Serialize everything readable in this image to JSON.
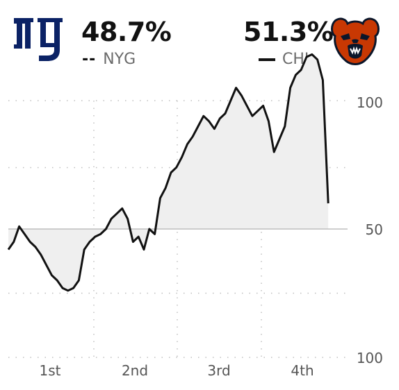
{
  "header": {
    "away": {
      "abbr": "NYG",
      "pct": "48.7%",
      "legend_symbol": "--",
      "logo_icon": "giants-ny-logo-icon",
      "color": "#0b2265"
    },
    "home": {
      "abbr": "CHI",
      "pct": "51.3%",
      "legend_symbol": "—",
      "logo_icon": "bears-head-logo-icon",
      "color": "#c83803"
    }
  },
  "chart_data": {
    "type": "line",
    "title": "",
    "xlabel": "",
    "ylabel": "",
    "x_tick_labels": [
      "1st",
      "2nd",
      "3rd",
      "4th"
    ],
    "y_tick_labels": [
      "100",
      "50",
      "100"
    ],
    "x_range": [
      0,
      60
    ],
    "y_range": [
      -50,
      50
    ],
    "grid": true,
    "fill_color": "#efefef",
    "line_color": "#111111",
    "series": [
      {
        "values_note": "",
        "x": [
          0,
          1,
          2,
          3,
          4,
          5,
          6,
          7,
          8,
          9,
          10,
          11,
          12,
          13,
          14,
          15,
          16,
          17,
          18,
          19,
          20,
          21,
          22,
          23,
          24,
          25,
          26,
          27,
          28,
          29,
          30,
          31,
          32,
          33,
          34,
          35,
          36,
          37,
          38,
          39,
          40,
          41,
          42,
          43,
          44,
          45,
          46,
          47,
          48,
          49,
          50,
          51,
          52,
          53,
          54,
          55,
          56,
          57,
          58,
          59
        ],
        "y": [
          -8,
          -5,
          1,
          -2,
          -5,
          -7,
          -10,
          -14,
          -18,
          -20,
          -23,
          -24,
          -23,
          -20,
          -8,
          -5,
          -3,
          -2,
          0,
          4,
          6,
          8,
          4,
          -5,
          -3,
          -8,
          0,
          -2,
          12,
          16,
          22,
          24,
          28,
          33,
          36,
          40,
          44,
          42,
          39,
          43,
          45,
          50,
          55,
          52,
          48,
          44,
          46,
          48,
          42,
          30,
          35,
          40,
          55,
          60,
          62,
          67,
          68,
          66,
          58,
          10
        ]
      }
    ]
  }
}
